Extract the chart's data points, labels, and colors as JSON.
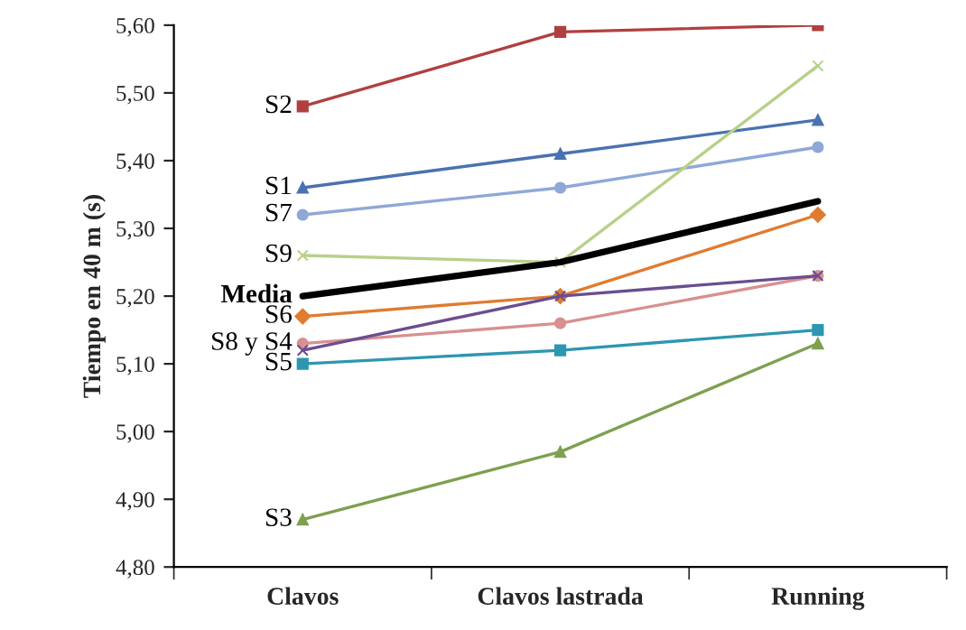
{
  "chart_data": {
    "type": "line",
    "ylabel": "Tiempo en 40 m (s)",
    "categories": [
      "Clavos",
      "Clavos lastrada",
      "Running"
    ],
    "ylim": [
      4.8,
      5.6
    ],
    "yticks": [
      {
        "value": 4.8,
        "label": "4,80"
      },
      {
        "value": 4.9,
        "label": "4,90"
      },
      {
        "value": 5.0,
        "label": "5,00"
      },
      {
        "value": 5.1,
        "label": "5,10"
      },
      {
        "value": 5.2,
        "label": "5,20"
      },
      {
        "value": 5.3,
        "label": "5,30"
      },
      {
        "value": 5.4,
        "label": "5,40"
      },
      {
        "value": 5.5,
        "label": "5,50"
      },
      {
        "value": 5.6,
        "label": "5,60"
      }
    ],
    "grid": false,
    "legend": false,
    "series": [
      {
        "name": "S2",
        "color": "#b04040",
        "marker": "square",
        "values": [
          5.48,
          5.59,
          5.6
        ]
      },
      {
        "name": "S1",
        "color": "#4a72b0",
        "marker": "triangle",
        "values": [
          5.36,
          5.41,
          5.46
        ]
      },
      {
        "name": "S7",
        "color": "#8fa8d8",
        "marker": "circle",
        "values": [
          5.32,
          5.36,
          5.42
        ]
      },
      {
        "name": "S9",
        "color": "#b8d08a",
        "marker": "cross",
        "values": [
          5.26,
          5.25,
          5.54
        ]
      },
      {
        "name": "Media",
        "color": "#000000",
        "marker": "none",
        "values": [
          5.2,
          5.25,
          5.34
        ]
      },
      {
        "name": "S6",
        "color": "#e07b30",
        "marker": "diamond",
        "values": [
          5.17,
          5.2,
          5.32
        ]
      },
      {
        "name": "S8 y S4",
        "color": "#d89090",
        "marker": "circle",
        "values": [
          5.13,
          5.16,
          5.23
        ]
      },
      {
        "color": "#6a4e90",
        "marker": "cross",
        "values": [
          5.12,
          5.2,
          5.23
        ]
      },
      {
        "name": "S5",
        "color": "#2e96b0",
        "marker": "square",
        "values": [
          5.1,
          5.12,
          5.15
        ]
      },
      {
        "name": "S3",
        "color": "#7fa050",
        "marker": "triangle",
        "values": [
          4.87,
          4.97,
          5.13
        ]
      }
    ]
  }
}
